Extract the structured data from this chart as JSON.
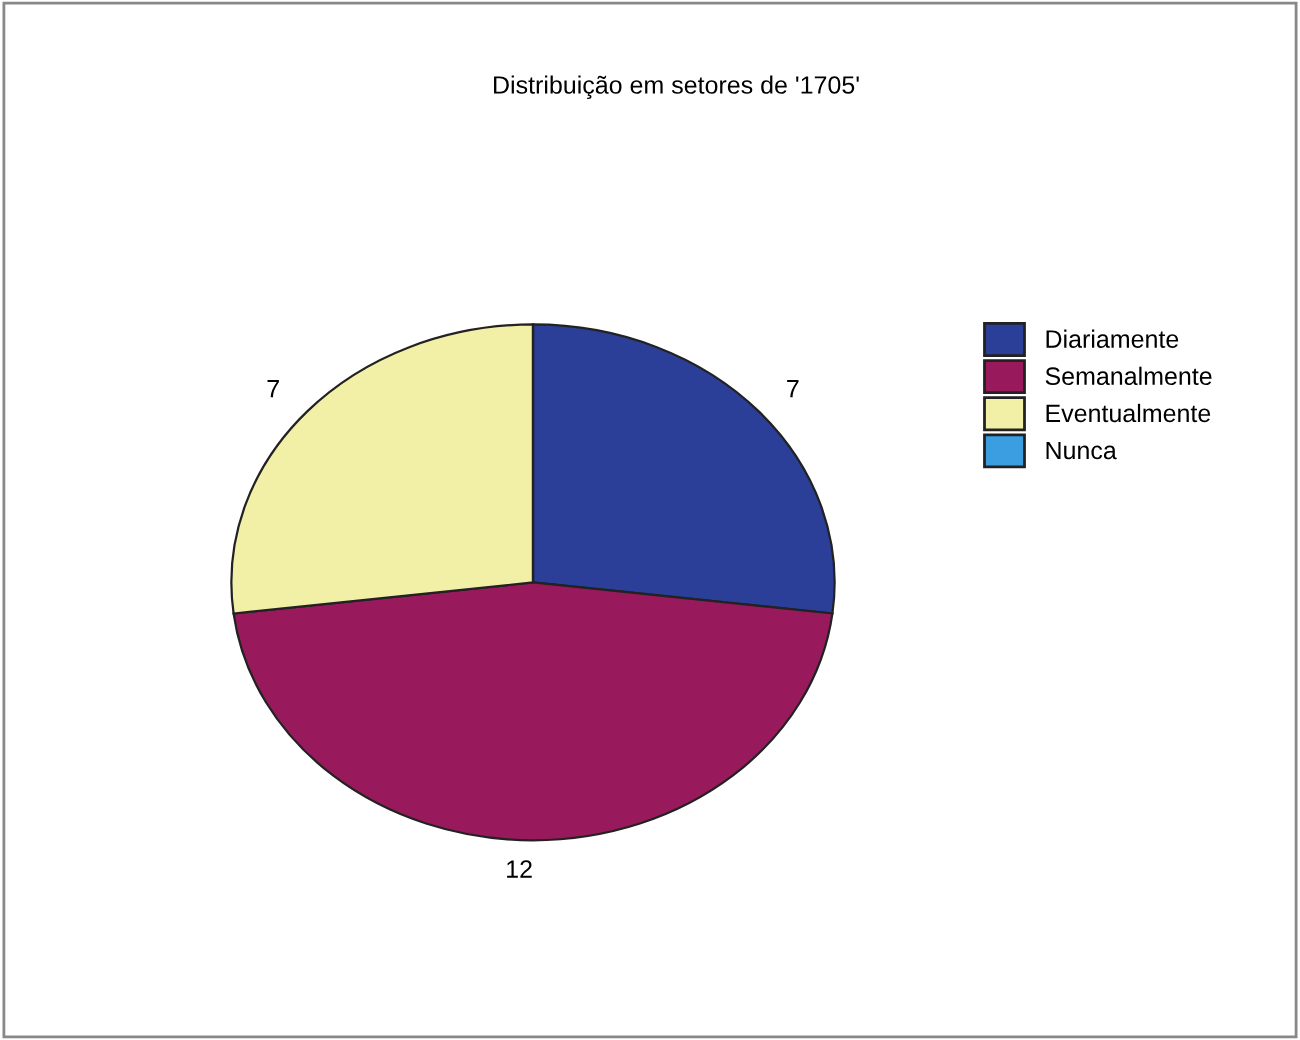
{
  "chart_data": {
    "type": "pie",
    "title": "Distribuição em setores de '1705'",
    "categories": [
      "Diariamente",
      "Semanalmente",
      "Eventualmente",
      "Nunca"
    ],
    "values": [
      7,
      12,
      7,
      0
    ],
    "colors": [
      "#2b3f98",
      "#981a5c",
      "#f2f0a6",
      "#3a9ee0"
    ],
    "value_labels": [
      "7",
      "12",
      "7",
      null
    ],
    "legend": "right"
  }
}
